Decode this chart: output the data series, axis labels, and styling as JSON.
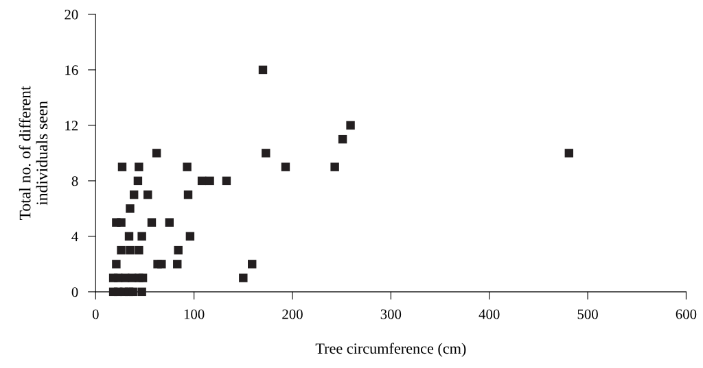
{
  "chart_data": {
    "type": "scatter",
    "xlabel": "Tree circumference (cm)",
    "ylabel": "Total no. of different\nindividuals seen",
    "xlim": [
      0,
      600
    ],
    "xticks": [
      0,
      100,
      200,
      300,
      400,
      500,
      600
    ],
    "ylim": [
      0,
      20
    ],
    "yticks": [
      0,
      4,
      8,
      12,
      16,
      20
    ],
    "grid": false,
    "marker": "square",
    "series": [
      {
        "color": "#231f20",
        "x": [
          170,
          259,
          251,
          173,
          481,
          62,
          193,
          243,
          27,
          44,
          93,
          43,
          108,
          116,
          133,
          39,
          53,
          94,
          35,
          21,
          26,
          57,
          75,
          34,
          47,
          96,
          26,
          35,
          44,
          84,
          21,
          63,
          67,
          83,
          159,
          150,
          18,
          23,
          30,
          37,
          44,
          48,
          18,
          23,
          29,
          34,
          38,
          47
        ],
        "values": [
          16,
          12,
          11,
          10,
          10,
          10,
          9,
          9,
          9,
          9,
          9,
          8,
          8,
          8,
          8,
          7,
          7,
          7,
          6,
          5,
          5,
          5,
          5,
          4,
          4,
          4,
          3,
          3,
          3,
          3,
          2,
          2,
          2,
          2,
          2,
          1,
          1,
          1,
          1,
          1,
          1,
          1,
          0,
          0,
          0,
          0,
          0,
          0
        ]
      }
    ]
  }
}
